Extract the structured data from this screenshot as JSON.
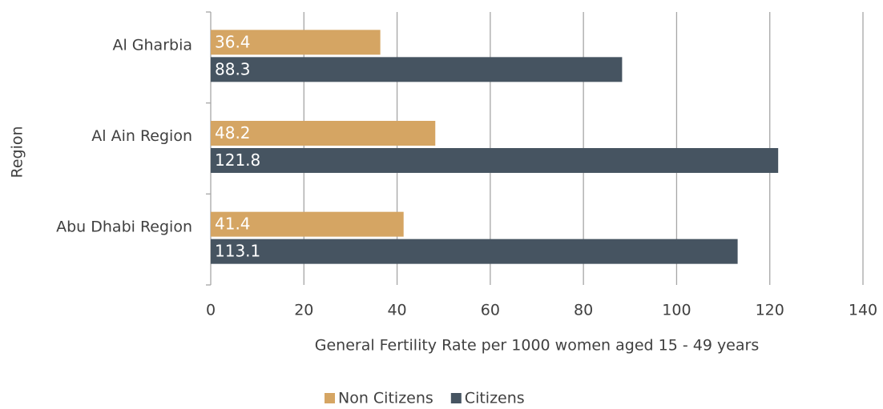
{
  "chart_data": {
    "type": "bar",
    "orientation": "horizontal",
    "categories": [
      "Al Gharbia",
      "Al Ain Region",
      "Abu Dhabi Region"
    ],
    "series": [
      {
        "name": "Non Citizens",
        "color": "#d5a563",
        "values": [
          36.4,
          48.2,
          41.4
        ]
      },
      {
        "name": "Citizens",
        "color": "#465461",
        "values": [
          88.3,
          121.8,
          113.1
        ]
      }
    ],
    "xlabel": "General Fertility Rate per 1000 women aged 15 - 49 years",
    "ylabel": "Region",
    "xlim": [
      0,
      140
    ],
    "xticks": [
      0,
      20,
      40,
      60,
      80,
      100,
      120,
      140
    ],
    "grid": true,
    "legend": "bottom",
    "data_labels": true
  }
}
